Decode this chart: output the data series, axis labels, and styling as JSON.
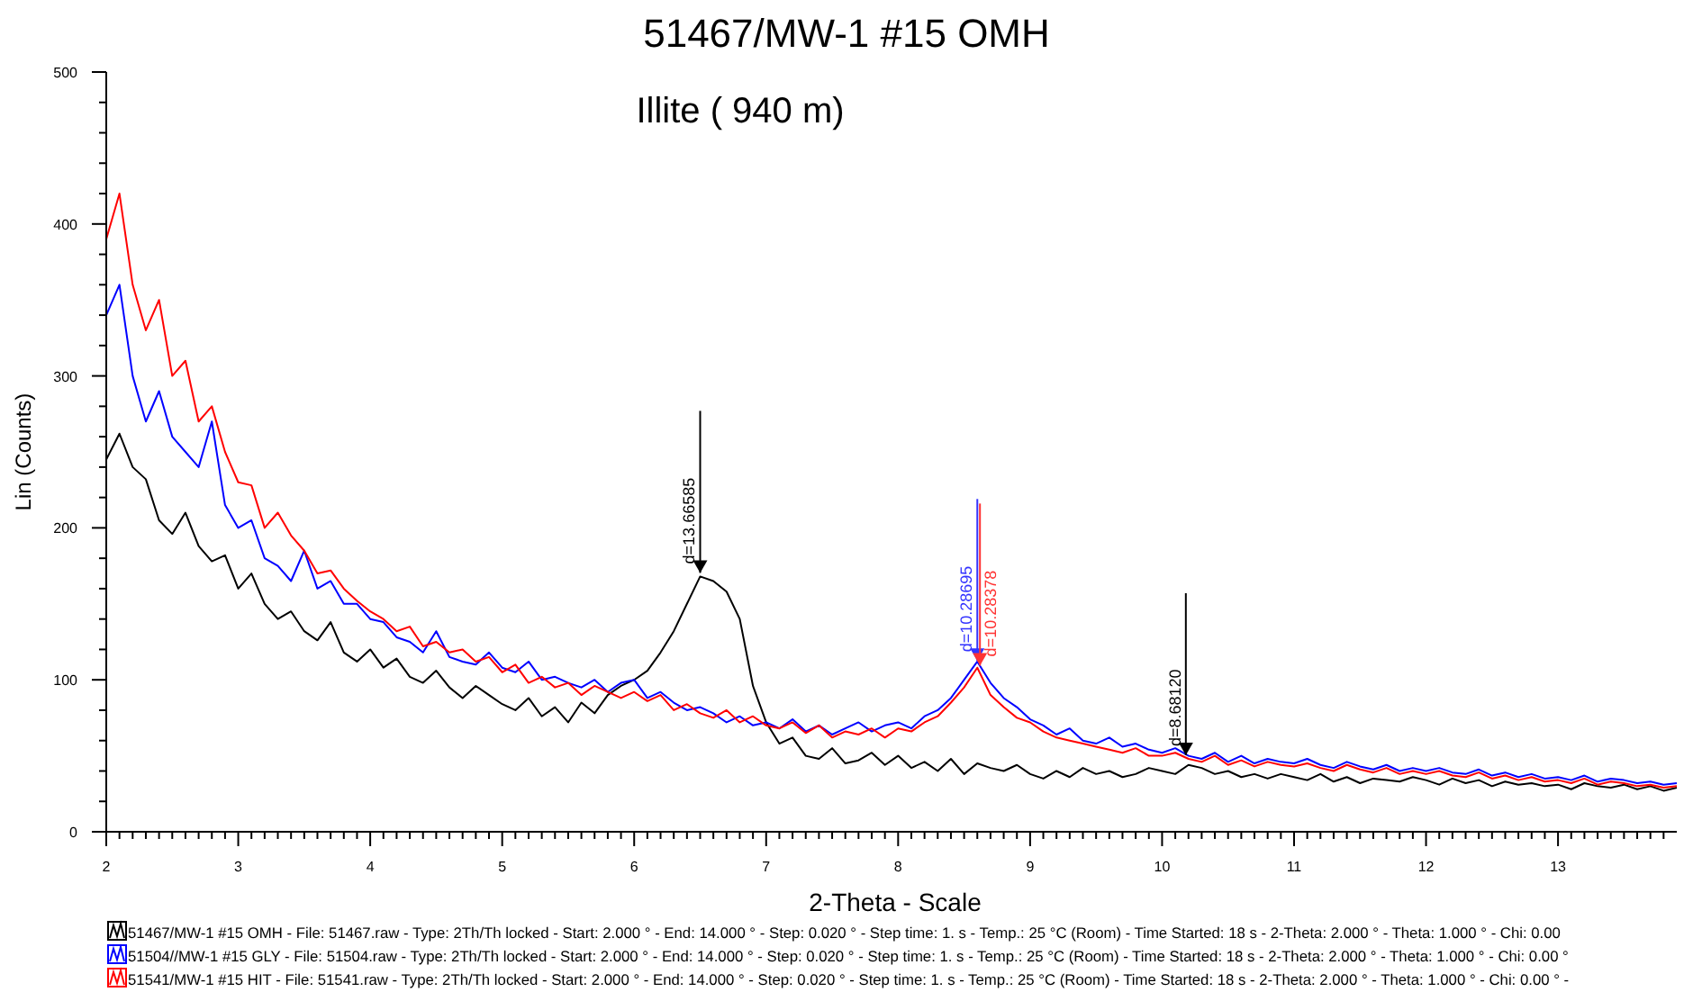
{
  "chart_data": {
    "type": "line",
    "title": "51467/MW-1 #15 OMH",
    "subtitle": "Illite ( 940 m)",
    "xlabel": "2-Theta - Scale",
    "ylabel": "Lin (Counts)",
    "x": [
      2.0,
      2.1,
      2.2,
      2.3,
      2.4,
      2.5,
      2.6,
      2.7,
      2.8,
      2.9,
      3.0,
      3.1,
      3.2,
      3.3,
      3.4,
      3.5,
      3.6,
      3.7,
      3.8,
      3.9,
      4.0,
      4.1,
      4.2,
      4.3,
      4.4,
      4.5,
      4.6,
      4.7,
      4.8,
      4.9,
      5.0,
      5.1,
      5.2,
      5.3,
      5.4,
      5.5,
      5.6,
      5.7,
      5.8,
      5.9,
      6.0,
      6.1,
      6.2,
      6.3,
      6.4,
      6.5,
      6.6,
      6.7,
      6.8,
      6.9,
      7.0,
      7.1,
      7.2,
      7.3,
      7.4,
      7.5,
      7.6,
      7.7,
      7.8,
      7.9,
      8.0,
      8.1,
      8.2,
      8.3,
      8.4,
      8.5,
      8.6,
      8.7,
      8.8,
      8.9,
      9.0,
      9.1,
      9.2,
      9.3,
      9.4,
      9.5,
      9.6,
      9.7,
      9.8,
      9.9,
      10.0,
      10.1,
      10.2,
      10.3,
      10.4,
      10.5,
      10.6,
      10.7,
      10.8,
      10.9,
      11.0,
      11.1,
      11.2,
      11.3,
      11.4,
      11.5,
      11.6,
      11.7,
      11.8,
      11.9,
      12.0,
      12.1,
      12.2,
      12.3,
      12.4,
      12.5,
      12.6,
      12.7,
      12.8,
      12.9,
      13.0,
      13.1,
      13.2,
      13.3,
      13.4,
      13.5,
      13.6,
      13.7,
      13.8,
      13.9
    ],
    "series": [
      {
        "name": "51467/MW-1 #15 OMH - File: 51467.raw - Type: 2Th/Th locked - Start: 2.000 ° - End: 14.000 ° - Step: 0.020 ° - Step time: 1. s - Temp.: 25 °C (Room) - Time Started: 18 s - 2-Theta: 2.000 ° - Theta: 1.000 ° - Chi: 0.00",
        "color": "#000000",
        "values": [
          245,
          262,
          240,
          232,
          205,
          196,
          210,
          188,
          178,
          182,
          160,
          170,
          150,
          140,
          145,
          132,
          126,
          138,
          118,
          112,
          120,
          108,
          114,
          102,
          98,
          106,
          95,
          88,
          96,
          90,
          84,
          80,
          88,
          76,
          82,
          72,
          85,
          78,
          90,
          96,
          100,
          106,
          118,
          132,
          150,
          168,
          165,
          158,
          140,
          96,
          72,
          58,
          62,
          50,
          48,
          55,
          45,
          47,
          52,
          44,
          50,
          42,
          46,
          40,
          48,
          38,
          45,
          42,
          40,
          44,
          38,
          35,
          40,
          36,
          42,
          38,
          40,
          36,
          38,
          42,
          40,
          38,
          44,
          42,
          38,
          40,
          36,
          38,
          35,
          38,
          36,
          34,
          38,
          33,
          36,
          32,
          35,
          34,
          33,
          36,
          34,
          31,
          35,
          32,
          34,
          30,
          33,
          31,
          32,
          30,
          31,
          28,
          32,
          30,
          29,
          31,
          28,
          30,
          27,
          29
        ]
      },
      {
        "name": "51504//MW-1 #15 GLY - File: 51504.raw - Type: 2Th/Th locked - Start: 2.000 ° - End: 14.000 ° - Step: 0.020 ° - Step time: 1. s - Temp.: 25 °C (Room) - Time Started: 18 s - 2-Theta: 2.000 ° - Theta: 1.000 ° - Chi: 0.00 °",
        "color": "#0000ff",
        "values": [
          340,
          360,
          300,
          270,
          290,
          260,
          250,
          240,
          270,
          215,
          200,
          205,
          180,
          175,
          165,
          185,
          160,
          165,
          150,
          150,
          140,
          138,
          128,
          125,
          118,
          132,
          115,
          112,
          110,
          118,
          108,
          105,
          112,
          100,
          102,
          98,
          95,
          100,
          92,
          98,
          100,
          88,
          92,
          85,
          80,
          82,
          78,
          72,
          76,
          70,
          72,
          68,
          74,
          66,
          70,
          64,
          68,
          72,
          66,
          70,
          72,
          68,
          76,
          80,
          88,
          100,
          112,
          98,
          88,
          82,
          74,
          70,
          64,
          68,
          60,
          58,
          62,
          56,
          58,
          54,
          52,
          55,
          50,
          48,
          52,
          46,
          50,
          45,
          48,
          46,
          45,
          48,
          44,
          42,
          46,
          43,
          41,
          44,
          40,
          42,
          40,
          42,
          39,
          38,
          41,
          37,
          39,
          36,
          38,
          35,
          36,
          34,
          37,
          33,
          35,
          34,
          32,
          33,
          31,
          32
        ]
      },
      {
        "name": "51541/MW-1 #15 HIT - File: 51541.raw - Type: 2Th/Th locked - Start: 2.000 ° - End: 14.000 ° - Step: 0.020 ° - Step time: 1. s - Temp.: 25 °C (Room) - Time Started: 18 s - 2-Theta: 2.000 ° - Theta: 1.000 ° - Chi: 0.00 ° -",
        "color": "#ff0000",
        "values": [
          390,
          420,
          360,
          330,
          350,
          300,
          310,
          270,
          280,
          250,
          230,
          228,
          200,
          210,
          195,
          185,
          170,
          172,
          160,
          152,
          145,
          140,
          132,
          135,
          122,
          125,
          118,
          120,
          112,
          115,
          105,
          110,
          98,
          102,
          95,
          98,
          90,
          96,
          92,
          88,
          92,
          86,
          90,
          80,
          84,
          78,
          75,
          80,
          72,
          76,
          70,
          68,
          72,
          65,
          70,
          62,
          66,
          64,
          68,
          62,
          68,
          66,
          72,
          76,
          85,
          95,
          108,
          90,
          82,
          75,
          72,
          66,
          62,
          60,
          58,
          56,
          54,
          52,
          55,
          50,
          50,
          52,
          48,
          46,
          50,
          44,
          47,
          43,
          46,
          44,
          43,
          45,
          42,
          40,
          44,
          41,
          39,
          42,
          38,
          40,
          38,
          40,
          37,
          36,
          39,
          35,
          37,
          34,
          36,
          33,
          34,
          32,
          35,
          31,
          33,
          32,
          30,
          31,
          29,
          30
        ]
      }
    ],
    "annotations": [
      {
        "text": "d=13.66585",
        "x": 6.5,
        "y": 168
      },
      {
        "text": "d=10.28695",
        "x": 8.6,
        "y": 110
      },
      {
        "text": "d=10.28378",
        "x": 8.62,
        "y": 107
      },
      {
        "text": "d=8.68120",
        "x": 10.18,
        "y": 48
      }
    ],
    "xlim": [
      2,
      13.9
    ],
    "ylim": [
      0,
      500
    ],
    "xticks": [
      2,
      {
        "value": 2.1,
        "label": null
      },
      {
        "value": 2.2,
        "label": null
      },
      {
        "value": 2.3,
        "label": null
      },
      {
        "value": 2.4,
        "label": null
      },
      {
        "value": 2.5,
        "label": null
      },
      {
        "value": 2.6,
        "label": null
      },
      {
        "value": 2.7,
        "label": null
      },
      {
        "value": 2.8,
        "label": null
      },
      {
        "value": 2.9,
        "label": null
      },
      3,
      {
        "value": 3.1,
        "label": null
      },
      {
        "value": 3.2,
        "label": null
      },
      {
        "value": 3.3,
        "label": null
      },
      {
        "value": 3.4,
        "label": null
      },
      {
        "value": 3.5,
        "label": null
      },
      {
        "value": 3.6,
        "label": null
      },
      {
        "value": 3.7,
        "label": null
      },
      {
        "value": 3.8,
        "label": null
      },
      {
        "value": 3.9,
        "label": null
      },
      4,
      {
        "value": 4.1,
        "label": null
      },
      {
        "value": 4.2,
        "label": null
      },
      {
        "value": 4.3,
        "label": null
      },
      {
        "value": 4.4,
        "label": null
      },
      {
        "value": 4.5,
        "label": null
      },
      {
        "value": 4.6,
        "label": null
      },
      {
        "value": 4.7,
        "label": null
      },
      {
        "value": 4.8,
        "label": null
      },
      {
        "value": 4.9,
        "label": null
      },
      5,
      {
        "value": 5.1,
        "label": null
      },
      {
        "value": 5.2,
        "label": null
      },
      {
        "value": 5.3,
        "label": null
      },
      {
        "value": 5.4,
        "label": null
      },
      {
        "value": 5.5,
        "label": null
      },
      {
        "value": 5.6,
        "label": null
      },
      {
        "value": 5.7,
        "label": null
      },
      {
        "value": 5.8,
        "label": null
      },
      {
        "value": 5.9,
        "label": null
      },
      6,
      {
        "value": 6.1,
        "label": null
      },
      {
        "value": 6.2,
        "label": null
      },
      {
        "value": 6.3,
        "label": null
      },
      {
        "value": 6.4,
        "label": null
      },
      {
        "value": 6.5,
        "label": null
      },
      {
        "value": 6.6,
        "label": null
      },
      {
        "value": 6.7,
        "label": null
      },
      {
        "value": 6.8,
        "label": null
      },
      {
        "value": 6.9,
        "label": null
      },
      7,
      {
        "value": 7.1,
        "label": null
      },
      {
        "value": 7.2,
        "label": null
      },
      {
        "value": 7.3,
        "label": null
      },
      {
        "value": 7.4,
        "label": null
      },
      {
        "value": 7.5,
        "label": null
      },
      {
        "value": 7.6,
        "label": null
      },
      {
        "value": 7.7,
        "label": null
      },
      {
        "value": 7.8,
        "label": null
      },
      {
        "value": 7.9,
        "label": null
      },
      8,
      {
        "value": 8.1,
        "label": null
      },
      {
        "value": 8.2,
        "label": null
      },
      {
        "value": 8.3,
        "label": null
      },
      {
        "value": 8.4,
        "label": null
      },
      {
        "value": 8.5,
        "label": null
      },
      {
        "value": 8.6,
        "label": null
      },
      {
        "value": 8.7,
        "label": null
      },
      {
        "value": 8.8,
        "label": null
      },
      {
        "value": 8.9,
        "label": null
      },
      9,
      {
        "value": 9.1,
        "label": null
      },
      {
        "value": 9.2,
        "label": null
      },
      {
        "value": 9.3,
        "label": null
      },
      {
        "value": 9.4,
        "label": null
      },
      {
        "value": 9.5,
        "label": null
      },
      {
        "value": 9.6,
        "label": null
      },
      {
        "value": 9.7,
        "label": null
      },
      {
        "value": 9.8,
        "label": null
      },
      {
        "value": 9.9,
        "label": null
      },
      10,
      {
        "value": 10.1,
        "label": null
      },
      {
        "value": 10.2,
        "label": null
      },
      {
        "value": 10.3,
        "label": null
      },
      {
        "value": 10.4,
        "label": null
      },
      {
        "value": 10.5,
        "label": null
      },
      {
        "value": 10.6,
        "label": null
      },
      {
        "value": 10.7,
        "label": null
      },
      {
        "value": 10.8,
        "label": null
      },
      {
        "value": 10.9,
        "label": null
      },
      11,
      {
        "value": 11.1,
        "label": null
      },
      {
        "value": 11.2,
        "label": null
      },
      {
        "value": 11.3,
        "label": null
      },
      {
        "value": 11.4,
        "label": null
      },
      {
        "value": 11.5,
        "label": null
      },
      {
        "value": 11.6,
        "label": null
      },
      {
        "value": 11.7,
        "label": null
      },
      {
        "value": 11.8,
        "label": null
      },
      {
        "value": 11.9,
        "label": null
      },
      12,
      {
        "value": 12.1,
        "label": null
      },
      {
        "value": 12.2,
        "label": null
      },
      {
        "value": 12.3,
        "label": null
      },
      {
        "value": 12.4,
        "label": null
      },
      {
        "value": 12.5,
        "label": null
      },
      {
        "value": 12.6,
        "label": null
      },
      {
        "value": 12.7,
        "label": null
      },
      {
        "value": 12.8,
        "label": null
      },
      {
        "value": 12.9,
        "label": null
      },
      13,
      {
        "value": 13.1,
        "label": null
      },
      {
        "value": 13.2,
        "label": null
      },
      {
        "value": 13.3,
        "label": null
      },
      {
        "value": 13.4,
        "label": null
      },
      {
        "value": 13.5,
        "label": null
      },
      {
        "value": 13.6,
        "label": null
      },
      {
        "value": 13.7,
        "label": null
      },
      {
        "value": 13.8,
        "label": null
      }
    ],
    "yticks": [
      0,
      {
        "value": 20,
        "label": null
      },
      {
        "value": 40,
        "label": null
      },
      {
        "value": 60,
        "label": null
      },
      {
        "value": 80,
        "label": null
      },
      100,
      {
        "value": 120,
        "label": null
      },
      {
        "value": 140,
        "label": null
      },
      {
        "value": 160,
        "label": null
      },
      {
        "value": 180,
        "label": null
      },
      200,
      {
        "value": 220,
        "label": null
      },
      {
        "value": 240,
        "label": null
      },
      {
        "value": 260,
        "label": null
      },
      {
        "value": 280,
        "label": null
      },
      300,
      {
        "value": 320,
        "label": null
      },
      {
        "value": 340,
        "label": null
      },
      {
        "value": 360,
        "label": null
      },
      {
        "value": 380,
        "label": null
      },
      400,
      {
        "value": 420,
        "label": null
      },
      {
        "value": 440,
        "label": null
      },
      {
        "value": 460,
        "label": null
      },
      {
        "value": 480,
        "label": null
      },
      500
    ],
    "grid": false,
    "legend": "bottom",
    "line_style": "solid"
  }
}
